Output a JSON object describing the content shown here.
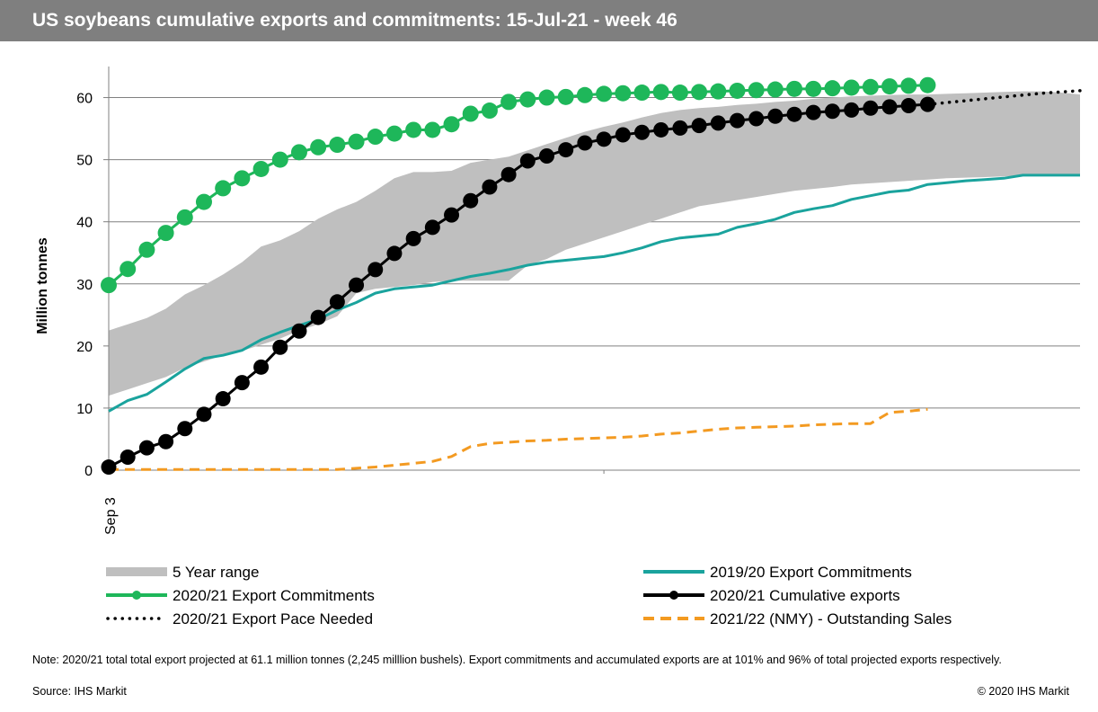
{
  "header": {
    "title": "US soybeans cumulative exports and commitments: 15-Jul-21 - week 46"
  },
  "chart_data": {
    "type": "line",
    "ylabel": "Million tonnes",
    "ylim": [
      0,
      65
    ],
    "yticks": [
      0,
      10,
      20,
      30,
      40,
      50,
      60
    ],
    "x_tick_label": "Sep 3",
    "grid": true,
    "legend_position": "bottom",
    "x_weeks_total": 52,
    "range_5yr": {
      "name": "5 Year range",
      "color": "#bfbfbf",
      "upper": [
        22.5,
        23.5,
        24.5,
        26,
        28.3,
        29.8,
        31.5,
        33.5,
        36,
        37,
        38.5,
        40.5,
        42,
        43.2,
        45,
        47,
        48,
        48,
        48.2,
        49.5,
        50,
        50.5,
        51.5,
        52.5,
        53.5,
        54.5,
        55.3,
        56,
        56.8,
        57.5,
        58,
        58.3,
        58.5,
        58.8,
        59,
        59.3,
        59.5,
        59.8,
        60,
        60.2,
        60.3,
        60.4,
        60.5,
        60.5,
        60.6,
        60.7,
        60.8,
        60.9,
        61,
        61,
        60.8,
        60.5
      ],
      "lower": [
        12,
        13,
        14,
        15,
        16.5,
        17.5,
        18.5,
        19.2,
        20.2,
        21.2,
        22.5,
        23.5,
        24.8,
        28.5,
        29.2,
        29.5,
        29.8,
        30.3,
        30.5,
        30.5,
        30.5,
        30.5,
        33,
        34,
        35.5,
        36.5,
        37.5,
        38.5,
        39.5,
        40.5,
        41.5,
        42.5,
        43,
        43.5,
        44,
        44.5,
        45,
        45.3,
        45.6,
        46,
        46.2,
        46.4,
        46.6,
        46.8,
        47,
        47.1,
        47.2,
        47.3,
        47.4,
        47.5,
        47.5,
        47.5
      ]
    },
    "series": [
      {
        "name": "2019/20 Export Commitments",
        "color": "#1aa39d",
        "style": "line",
        "values": [
          9.5,
          11.2,
          12.2,
          14.2,
          16.3,
          18,
          18.5,
          19.3,
          21,
          22.2,
          23.3,
          24.3,
          25.8,
          27,
          28.5,
          29.2,
          29.5,
          29.8,
          30.5,
          31.2,
          31.7,
          32.3,
          33,
          33.5,
          33.8,
          34.1,
          34.4,
          35,
          35.8,
          36.8,
          37.4,
          37.7,
          38,
          39.1,
          39.7,
          40.4,
          41.5,
          42.1,
          42.6,
          43.6,
          44.2,
          44.8,
          45.1,
          46,
          46.3,
          46.6,
          46.8,
          47,
          47.5,
          47.5,
          47.5,
          47.5
        ]
      },
      {
        "name": "2020/21 Export Commitments",
        "color": "#1eb75a",
        "style": "markers",
        "values": [
          29.8,
          32.4,
          35.5,
          38.2,
          40.7,
          43.2,
          45.4,
          47,
          48.5,
          50,
          51.2,
          52,
          52.4,
          52.9,
          53.7,
          54.2,
          54.8,
          54.8,
          55.7,
          57.4,
          57.9,
          59.3,
          59.7,
          60,
          60.1,
          60.4,
          60.6,
          60.7,
          60.8,
          60.9,
          60.8,
          60.9,
          61,
          61.1,
          61.2,
          61.3,
          61.4,
          61.4,
          61.5,
          61.6,
          61.7,
          61.8,
          61.9,
          62
        ]
      },
      {
        "name": "2020/21 Cumulative exports",
        "color": "#000000",
        "style": "markers",
        "values": [
          0.5,
          2.1,
          3.6,
          4.6,
          6.7,
          9,
          11.5,
          14.1,
          16.6,
          19.8,
          22.4,
          24.6,
          27.1,
          29.8,
          32.3,
          34.9,
          37.3,
          39.1,
          41.1,
          43.4,
          45.6,
          47.6,
          49.8,
          50.6,
          51.6,
          52.7,
          53.3,
          54,
          54.4,
          54.8,
          55.1,
          55.5,
          55.9,
          56.3,
          56.6,
          57,
          57.3,
          57.6,
          57.8,
          58,
          58.3,
          58.5,
          58.7,
          58.9
        ]
      },
      {
        "name": "2020/21 Export Pace Needed",
        "color": "#000000",
        "style": "dotted",
        "values": [
          null,
          null,
          null,
          null,
          null,
          null,
          null,
          null,
          null,
          null,
          null,
          null,
          null,
          null,
          null,
          null,
          null,
          null,
          null,
          null,
          null,
          null,
          null,
          null,
          null,
          null,
          null,
          null,
          null,
          null,
          null,
          null,
          null,
          null,
          null,
          null,
          null,
          null,
          null,
          null,
          null,
          null,
          null,
          58.9,
          59.2,
          59.5,
          59.8,
          60.1,
          60.4,
          60.7,
          60.9,
          61.1
        ]
      },
      {
        "name": "2021/22 (NMY) - Outstanding Sales",
        "color": "#f39a21",
        "style": "dashed",
        "values": [
          0.1,
          0.1,
          0.1,
          0.1,
          0.1,
          0.1,
          0.1,
          0.1,
          0.1,
          0.1,
          0.1,
          0.1,
          0.1,
          0.3,
          0.5,
          0.8,
          1.1,
          1.4,
          2.2,
          3.8,
          4.3,
          4.5,
          4.7,
          4.8,
          5,
          5.1,
          5.2,
          5.3,
          5.5,
          5.8,
          6,
          6.3,
          6.6,
          6.8,
          6.9,
          7,
          7.1,
          7.3,
          7.4,
          7.5,
          7.5,
          9.3,
          9.5,
          9.8
        ]
      }
    ]
  },
  "legend": {
    "items": [
      {
        "label": "5 Year range",
        "kind": "area"
      },
      {
        "label": "2019/20 Export Commitments",
        "kind": "line"
      },
      {
        "label": "2020/21 Export Commitments",
        "kind": "markers-green"
      },
      {
        "label": "2020/21 Cumulative exports",
        "kind": "markers-black"
      },
      {
        "label": "2020/21 Export Pace Needed",
        "kind": "dotted"
      },
      {
        "label": "2021/22 (NMY) - Outstanding Sales",
        "kind": "dashed"
      }
    ]
  },
  "footer": {
    "note": "Note: 2020/21 total total export projected at 61.1 million tonnes (2,245  milllion bushels). Export commitments and accumulated exports are at 101% and 96% of total projected exports respectively.",
    "source": "Source: IHS Markit",
    "copyright": "© 2020 IHS Markit"
  }
}
